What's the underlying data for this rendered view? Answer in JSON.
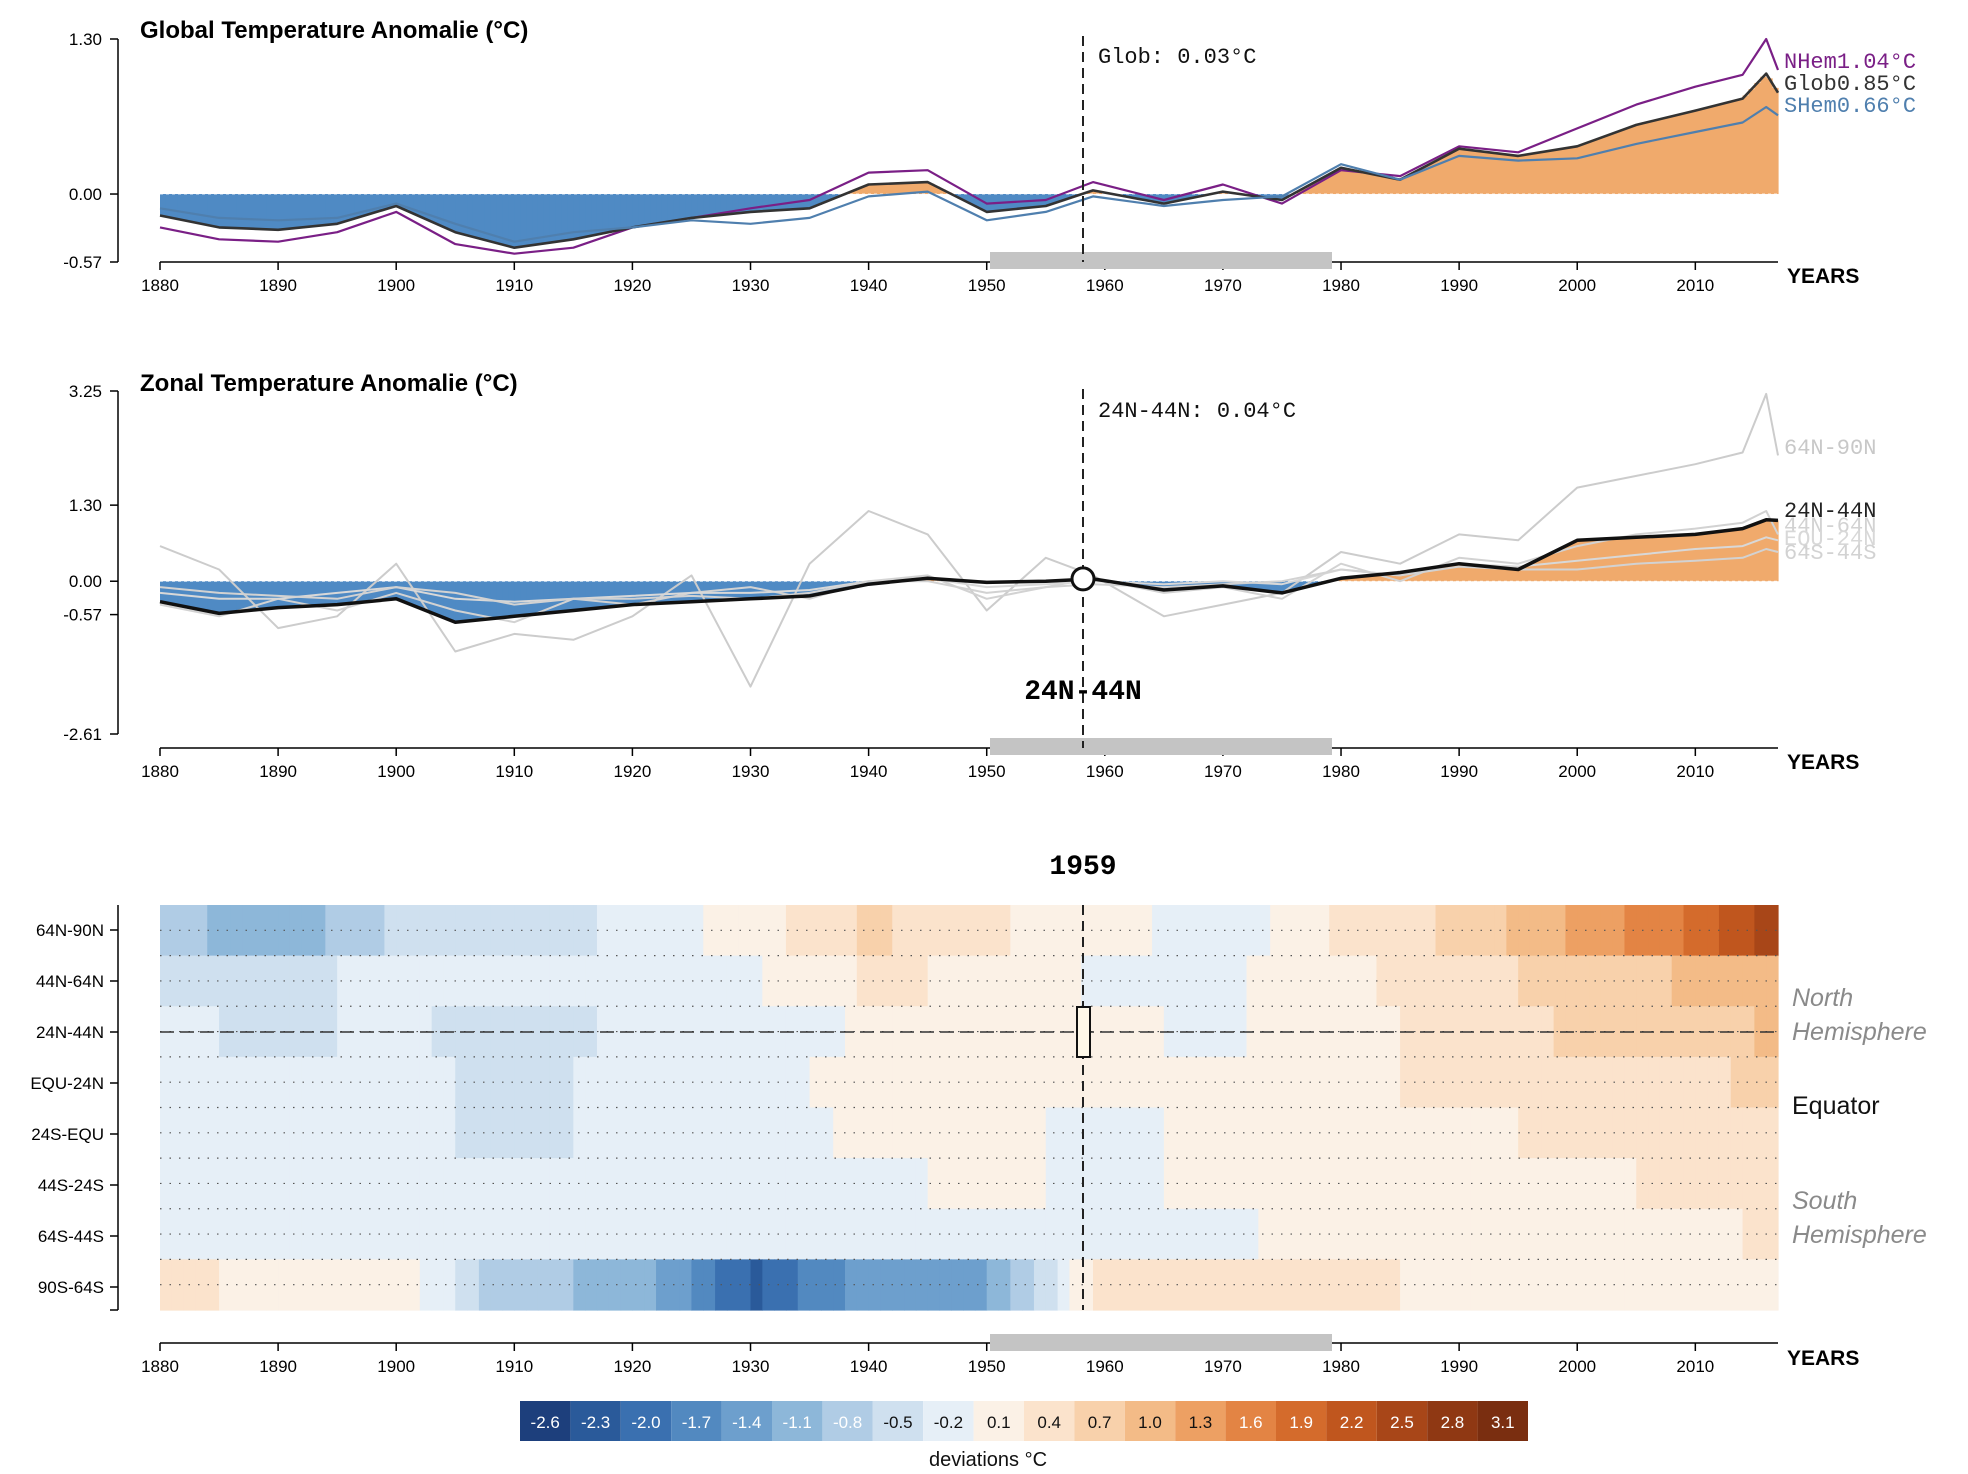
{
  "charts": {
    "global": {
      "title": "Global Temperature Anomalie (°C)",
      "cursor_label": "Glob: 0.03°C",
      "axis_name": "YEARS",
      "y_ticks": [
        "1.30",
        "0.00",
        "-0.57"
      ],
      "series_labels": [
        {
          "name": "NHem",
          "value": "1.04°C",
          "color": "#7a1f86"
        },
        {
          "name": "Glob",
          "value": "0.85°C",
          "color": "#333333"
        },
        {
          "name": "SHem",
          "value": "0.66°C",
          "color": "#4f7fae"
        }
      ]
    },
    "zonal": {
      "title": "Zonal Temperature Anomalie (°C)",
      "cursor_label": "24N-44N: 0.04°C",
      "selected_zone_label": "24N-44N",
      "axis_name": "YEARS",
      "y_ticks": [
        "3.25",
        "1.30",
        "0.00",
        "-0.57",
        "-2.61"
      ],
      "zone_labels": [
        {
          "text": "64N-90N",
          "color": "#c8c8c8"
        },
        {
          "text": "24N-44N",
          "color": "#222222"
        },
        {
          "text": "44N-64N",
          "color": "#d2d2d2"
        },
        {
          "text": "EQU-24N",
          "color": "#d8d8d8"
        },
        {
          "text": "64S-44S",
          "color": "#d2d2d2"
        }
      ]
    },
    "heatmap": {
      "title": "1959",
      "axis_name": "YEARS",
      "zones": [
        "64N-90N",
        "44N-64N",
        "24N-44N",
        "EQU-24N",
        "24S-EQU",
        "44S-24S",
        "64S-44S",
        "90S-64S"
      ],
      "region_labels": {
        "north_1": "North",
        "north_2": "Hemisphere",
        "equator": "Equator",
        "south_1": "South",
        "south_2": "Hemisphere"
      }
    },
    "x_ticks": [
      "1880",
      "1890",
      "1900",
      "1910",
      "1920",
      "1930",
      "1940",
      "1950",
      "1960",
      "1970",
      "1980",
      "1990",
      "2000",
      "2010"
    ],
    "legend": {
      "title": "deviations °C",
      "values": [
        "-2.6",
        "-2.3",
        "-2.0",
        "-1.7",
        "-1.4",
        "-1.1",
        "-0.8",
        "-0.5",
        "-0.2",
        "0.1",
        "0.4",
        "0.7",
        "1.0",
        "1.3",
        "1.6",
        "1.9",
        "2.2",
        "2.5",
        "2.8",
        "3.1"
      ],
      "colors": [
        "#1d3f7c",
        "#2a5a9a",
        "#3a70b0",
        "#5289c0",
        "#6d9fcd",
        "#8db7d9",
        "#b0cce5",
        "#cfe0ef",
        "#e6eff7",
        "#fbf1e6",
        "#fbe3cc",
        "#f8d1ab",
        "#f3bb87",
        "#eda063",
        "#e38444",
        "#d46b2c",
        "#c0561e",
        "#a84618",
        "#8f3813",
        "#7a2e10"
      ]
    }
  },
  "chart_data": [
    {
      "type": "area",
      "title": "Global Temperature Anomalie (°C)",
      "xlabel": "YEARS",
      "ylabel": "",
      "xlim": [
        1880,
        2017
      ],
      "ylim": [
        -0.57,
        1.3
      ],
      "selected_year": 1959,
      "highlight_range": [
        1951,
        1980
      ],
      "x": [
        1880,
        1885,
        1890,
        1895,
        1900,
        1905,
        1910,
        1915,
        1920,
        1925,
        1930,
        1935,
        1940,
        1945,
        1950,
        1955,
        1959,
        1965,
        1970,
        1975,
        1980,
        1985,
        1990,
        1995,
        2000,
        2005,
        2010,
        2014,
        2016,
        2017
      ],
      "series": [
        {
          "name": "NHem",
          "color": "#7a1f86",
          "values": [
            -0.28,
            -0.38,
            -0.4,
            -0.32,
            -0.15,
            -0.42,
            -0.5,
            -0.45,
            -0.28,
            -0.2,
            -0.12,
            -0.05,
            0.18,
            0.2,
            -0.08,
            -0.05,
            0.1,
            -0.05,
            0.08,
            -0.08,
            0.2,
            0.15,
            0.4,
            0.35,
            0.55,
            0.75,
            0.9,
            1.0,
            1.3,
            1.04
          ]
        },
        {
          "name": "Glob",
          "color": "#333333",
          "values": [
            -0.18,
            -0.28,
            -0.3,
            -0.25,
            -0.1,
            -0.32,
            -0.45,
            -0.38,
            -0.28,
            -0.2,
            -0.15,
            -0.12,
            0.08,
            0.1,
            -0.15,
            -0.1,
            0.03,
            -0.08,
            0.02,
            -0.05,
            0.22,
            0.12,
            0.38,
            0.32,
            0.4,
            0.58,
            0.7,
            0.8,
            1.01,
            0.85
          ]
        },
        {
          "name": "SHem",
          "color": "#4f7fae",
          "values": [
            -0.12,
            -0.2,
            -0.22,
            -0.2,
            -0.08,
            -0.25,
            -0.4,
            -0.32,
            -0.28,
            -0.22,
            -0.25,
            -0.2,
            -0.02,
            0.02,
            -0.22,
            -0.15,
            -0.02,
            -0.1,
            -0.05,
            -0.02,
            0.25,
            0.12,
            0.32,
            0.28,
            0.3,
            0.42,
            0.52,
            0.6,
            0.73,
            0.66
          ]
        }
      ]
    },
    {
      "type": "line",
      "title": "Zonal Temperature Anomalie (°C)",
      "xlabel": "YEARS",
      "ylabel": "",
      "xlim": [
        1880,
        2017
      ],
      "ylim": [
        -2.61,
        3.25
      ],
      "selected_year": 1959,
      "selected_zone": "24N-44N",
      "highlight_range": [
        1951,
        1980
      ],
      "x": [
        1880,
        1885,
        1890,
        1895,
        1900,
        1905,
        1910,
        1915,
        1920,
        1925,
        1930,
        1935,
        1940,
        1945,
        1950,
        1955,
        1959,
        1965,
        1970,
        1975,
        1980,
        1985,
        1990,
        1995,
        2000,
        2005,
        2010,
        2014,
        2016,
        2017
      ],
      "series": [
        {
          "name": "24N-44N",
          "color": "#111111",
          "values": [
            -0.35,
            -0.55,
            -0.45,
            -0.4,
            -0.3,
            -0.7,
            -0.6,
            -0.5,
            -0.4,
            -0.35,
            -0.3,
            -0.25,
            -0.05,
            0.05,
            -0.02,
            0.0,
            0.04,
            -0.15,
            -0.08,
            -0.2,
            0.05,
            0.15,
            0.3,
            0.2,
            0.7,
            0.75,
            0.8,
            0.9,
            1.05,
            1.04
          ]
        },
        {
          "name": "64N-90N",
          "color": "#cccccc",
          "values": [
            0.6,
            0.2,
            -0.8,
            -0.6,
            0.3,
            -1.2,
            -0.9,
            -1.0,
            -0.6,
            0.1,
            -1.8,
            0.3,
            1.2,
            0.8,
            -0.5,
            0.4,
            0.1,
            -0.6,
            -0.4,
            -0.2,
            0.5,
            0.3,
            0.8,
            0.7,
            1.6,
            1.8,
            2.0,
            2.2,
            3.2,
            2.15
          ]
        },
        {
          "name": "44N-64N",
          "color": "#d2d2d2",
          "values": [
            -0.4,
            -0.6,
            -0.3,
            -0.5,
            -0.2,
            -0.5,
            -0.7,
            -0.3,
            -0.4,
            -0.2,
            -0.1,
            -0.3,
            0.0,
            0.1,
            -0.3,
            -0.1,
            0.05,
            -0.2,
            -0.1,
            -0.3,
            0.3,
            0.0,
            0.4,
            0.3,
            0.6,
            0.8,
            0.9,
            1.0,
            1.2,
            0.8
          ]
        },
        {
          "name": "EQU-24N",
          "color": "#d8d8d8",
          "values": [
            -0.2,
            -0.3,
            -0.3,
            -0.2,
            -0.1,
            -0.3,
            -0.35,
            -0.3,
            -0.25,
            -0.2,
            -0.2,
            -0.15,
            0.0,
            0.05,
            -0.1,
            -0.05,
            0.0,
            -0.05,
            0.0,
            -0.05,
            0.2,
            0.1,
            0.3,
            0.25,
            0.35,
            0.45,
            0.55,
            0.6,
            0.75,
            0.7
          ]
        },
        {
          "name": "64S-44S",
          "color": "#d2d2d2",
          "values": [
            -0.1,
            -0.2,
            -0.25,
            -0.3,
            -0.1,
            -0.2,
            -0.4,
            -0.3,
            -0.3,
            -0.25,
            -0.3,
            -0.2,
            0.0,
            0.0,
            -0.2,
            -0.1,
            -0.05,
            -0.1,
            -0.05,
            0.0,
            0.2,
            0.1,
            0.25,
            0.2,
            0.2,
            0.3,
            0.35,
            0.4,
            0.55,
            0.5
          ]
        }
      ]
    },
    {
      "type": "heatmap",
      "title": "1959",
      "xlabel": "YEARS",
      "ylabel": "",
      "xlim": [
        1880,
        2017
      ],
      "selected_year": 1959,
      "selected_zone": "24N-44N",
      "highlight_range": [
        1951,
        1980
      ],
      "legend_title": "deviations °C",
      "zones": [
        "64N-90N",
        "44N-64N",
        "24N-44N",
        "EQU-24N",
        "24S-EQU",
        "44S-24S",
        "64S-44S",
        "90S-64S"
      ],
      "x": [
        1880,
        1890,
        1900,
        1910,
        1920,
        1930,
        1940,
        1950,
        1960,
        1970,
        1980,
        1990,
        2000,
        2010,
        2017
      ],
      "values": [
        [
          -0.8,
          -1.2,
          -0.6,
          -0.5,
          -0.3,
          0.1,
          0.6,
          0.3,
          0.1,
          -0.3,
          0.3,
          0.6,
          1.2,
          1.8,
          2.6
        ],
        [
          -0.5,
          -0.4,
          -0.3,
          -0.3,
          -0.2,
          -0.1,
          0.3,
          0.2,
          -0.1,
          -0.1,
          0.2,
          0.4,
          0.7,
          0.9,
          1.1
        ],
        [
          -0.3,
          -0.4,
          -0.3,
          -0.5,
          -0.3,
          -0.3,
          0.0,
          0.1,
          0.0,
          -0.1,
          0.2,
          0.3,
          0.6,
          0.7,
          0.9
        ],
        [
          -0.2,
          -0.3,
          -0.3,
          -0.4,
          -0.3,
          -0.2,
          0.1,
          0.0,
          0.0,
          0.0,
          0.2,
          0.3,
          0.4,
          0.5,
          0.6
        ],
        [
          -0.2,
          -0.2,
          -0.3,
          -0.4,
          -0.3,
          -0.2,
          0.0,
          0.0,
          -0.1,
          0.0,
          0.2,
          0.2,
          0.3,
          0.4,
          0.5
        ],
        [
          -0.1,
          -0.2,
          -0.2,
          -0.3,
          -0.3,
          -0.3,
          -0.1,
          0.0,
          -0.1,
          0.0,
          0.1,
          0.2,
          0.2,
          0.3,
          0.4
        ],
        [
          -0.1,
          -0.1,
          -0.2,
          -0.3,
          -0.3,
          -0.3,
          -0.1,
          -0.1,
          -0.1,
          -0.1,
          0.1,
          0.1,
          0.2,
          0.2,
          0.3
        ],
        [
          0.3,
          0.2,
          0.1,
          -0.9,
          -1.0,
          -2.2,
          -1.4,
          -1.3,
          0.4,
          0.5,
          0.3,
          0.2,
          0.2,
          0.2,
          0.1
        ]
      ]
    }
  ]
}
